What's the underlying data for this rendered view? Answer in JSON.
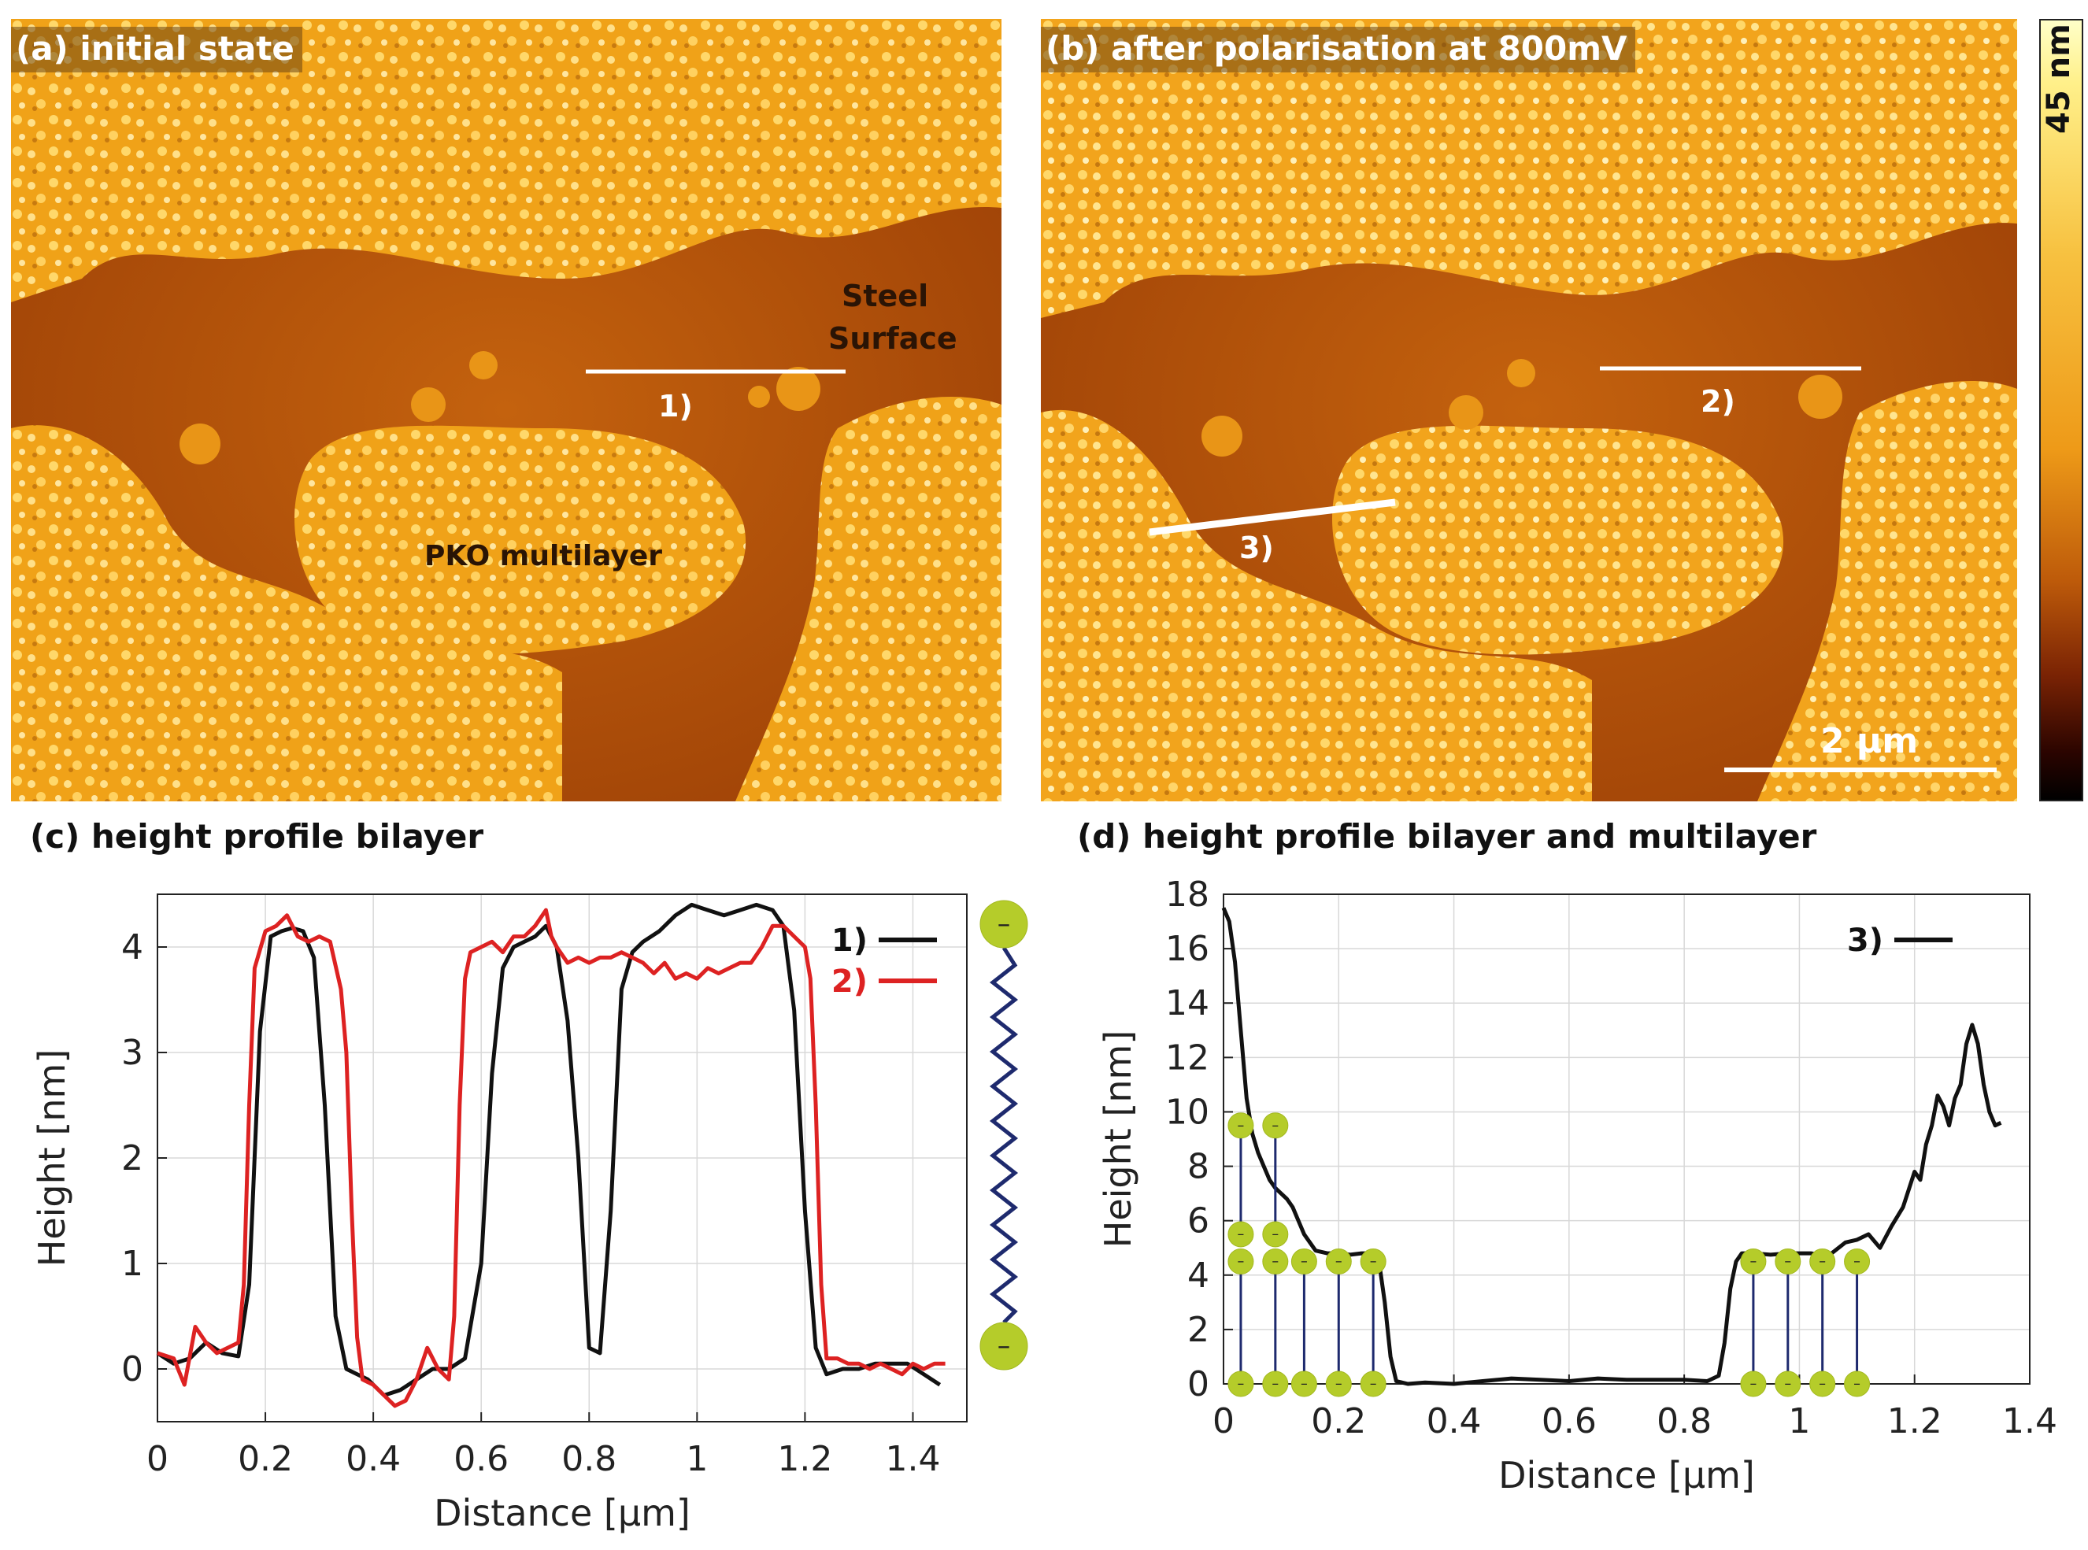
{
  "panels": {
    "a": {
      "label": "(a) initial state",
      "annotations": {
        "steel_1": "Steel",
        "steel_2": "Surface",
        "pko": "PKO multilayer",
        "line1": "1)"
      }
    },
    "b": {
      "label": "(b) after polarisation at 800mV",
      "annotations": {
        "line2": "2)",
        "line3": "3)",
        "scalebar": "2 µm"
      }
    },
    "colorbar": {
      "label": "45 nm"
    },
    "c": {
      "title": "(c) height profile bilayer"
    },
    "d": {
      "title": "(d) height profile bilayer and multilayer"
    }
  },
  "colors": {
    "series_1": "#111111",
    "series_2": "#dd2222",
    "head_group": "#b5cc2a",
    "chain": "#1e2a6e"
  },
  "chart_data": [
    {
      "type": "line",
      "title": "(c) height profile bilayer",
      "xlabel": "Distance [µm]",
      "ylabel": "Height [nm]",
      "xlim": [
        0,
        1.5
      ],
      "ylim": [
        -0.5,
        4.5
      ],
      "xticks": [
        0,
        0.2,
        0.4,
        0.6,
        0.8,
        1,
        1.2,
        1.4
      ],
      "yticks": [
        0,
        1,
        2,
        3,
        4
      ],
      "xtick_labels": [
        "0",
        "0.2",
        "0.4",
        "0.6",
        "0.8",
        "1",
        "1.2",
        "1.4"
      ],
      "ytick_labels": [
        "0",
        "1",
        "2",
        "3",
        "4"
      ],
      "legend": "top-right",
      "series": [
        {
          "name": "1)",
          "color": "#111111",
          "x": [
            0,
            0.03,
            0.06,
            0.09,
            0.12,
            0.15,
            0.17,
            0.19,
            0.21,
            0.23,
            0.25,
            0.27,
            0.29,
            0.31,
            0.33,
            0.35,
            0.37,
            0.39,
            0.42,
            0.45,
            0.48,
            0.51,
            0.54,
            0.57,
            0.6,
            0.62,
            0.64,
            0.66,
            0.68,
            0.7,
            0.72,
            0.74,
            0.76,
            0.78,
            0.8,
            0.82,
            0.84,
            0.86,
            0.88,
            0.9,
            0.93,
            0.96,
            0.99,
            1.02,
            1.05,
            1.08,
            1.11,
            1.14,
            1.16,
            1.18,
            1.2,
            1.22,
            1.24,
            1.27,
            1.3,
            1.33,
            1.36,
            1.39,
            1.42,
            1.45
          ],
          "y": [
            0.15,
            0.05,
            0.1,
            0.25,
            0.15,
            0.12,
            0.8,
            3.2,
            4.1,
            4.15,
            4.18,
            4.15,
            3.9,
            2.5,
            0.5,
            0.0,
            -0.05,
            -0.1,
            -0.25,
            -0.2,
            -0.1,
            0.0,
            0.0,
            0.1,
            1.0,
            2.8,
            3.8,
            4.0,
            4.05,
            4.1,
            4.2,
            4.0,
            3.3,
            2.0,
            0.2,
            0.15,
            1.5,
            3.6,
            3.95,
            4.05,
            4.15,
            4.3,
            4.4,
            4.35,
            4.3,
            4.35,
            4.4,
            4.35,
            4.2,
            3.4,
            1.5,
            0.2,
            -0.05,
            0.0,
            0.0,
            0.05,
            0.05,
            0.05,
            -0.05,
            -0.15
          ]
        },
        {
          "name": "2)",
          "color": "#dd2222",
          "x": [
            0,
            0.03,
            0.05,
            0.07,
            0.09,
            0.11,
            0.13,
            0.15,
            0.16,
            0.17,
            0.18,
            0.2,
            0.22,
            0.24,
            0.26,
            0.28,
            0.3,
            0.32,
            0.34,
            0.35,
            0.36,
            0.37,
            0.38,
            0.4,
            0.42,
            0.44,
            0.46,
            0.48,
            0.5,
            0.52,
            0.54,
            0.55,
            0.56,
            0.57,
            0.58,
            0.6,
            0.62,
            0.64,
            0.66,
            0.68,
            0.7,
            0.72,
            0.73,
            0.74,
            0.76,
            0.78,
            0.8,
            0.82,
            0.84,
            0.86,
            0.88,
            0.9,
            0.92,
            0.94,
            0.96,
            0.98,
            1.0,
            1.02,
            1.04,
            1.06,
            1.08,
            1.1,
            1.12,
            1.14,
            1.16,
            1.18,
            1.2,
            1.21,
            1.22,
            1.23,
            1.24,
            1.26,
            1.28,
            1.3,
            1.32,
            1.34,
            1.36,
            1.38,
            1.4,
            1.42,
            1.44,
            1.46
          ],
          "y": [
            0.15,
            0.1,
            -0.15,
            0.4,
            0.25,
            0.15,
            0.2,
            0.25,
            0.8,
            2.5,
            3.8,
            4.15,
            4.2,
            4.3,
            4.1,
            4.05,
            4.1,
            4.05,
            3.6,
            3.0,
            1.5,
            0.3,
            -0.1,
            -0.15,
            -0.25,
            -0.35,
            -0.3,
            -0.1,
            0.2,
            0.0,
            -0.1,
            0.5,
            2.5,
            3.7,
            3.95,
            4.0,
            4.05,
            3.95,
            4.1,
            4.1,
            4.2,
            4.35,
            4.1,
            4.0,
            3.85,
            3.9,
            3.85,
            3.9,
            3.9,
            3.95,
            3.9,
            3.85,
            3.75,
            3.85,
            3.7,
            3.75,
            3.7,
            3.8,
            3.75,
            3.8,
            3.85,
            3.85,
            4.0,
            4.2,
            4.2,
            4.1,
            4.0,
            3.7,
            2.5,
            0.8,
            0.1,
            0.1,
            0.05,
            0.05,
            0.0,
            0.05,
            0.0,
            -0.05,
            0.05,
            0.0,
            0.05,
            0.05
          ]
        }
      ],
      "illustration": {
        "type": "single-chain",
        "head_symbol": "–"
      }
    },
    {
      "type": "line",
      "title": "(d) height profile bilayer and multilayer",
      "xlabel": "Distance [µm]",
      "ylabel": "Height [nm]",
      "xlim": [
        0,
        1.4
      ],
      "ylim": [
        0,
        18
      ],
      "xticks": [
        0,
        0.2,
        0.4,
        0.6,
        0.8,
        1,
        1.2,
        1.4
      ],
      "yticks": [
        0,
        2,
        4,
        6,
        8,
        10,
        12,
        14,
        16,
        18
      ],
      "xtick_labels": [
        "0",
        "0.2",
        "0.4",
        "0.6",
        "0.8",
        "1",
        "1.2",
        "1.4"
      ],
      "ytick_labels": [
        "0",
        "2",
        "4",
        "6",
        "8",
        "10",
        "12",
        "14",
        "16",
        "18"
      ],
      "legend": "top-right",
      "series": [
        {
          "name": "3)",
          "color": "#111111",
          "x": [
            0,
            0.01,
            0.02,
            0.03,
            0.04,
            0.05,
            0.06,
            0.07,
            0.08,
            0.09,
            0.1,
            0.11,
            0.12,
            0.13,
            0.14,
            0.15,
            0.16,
            0.18,
            0.2,
            0.22,
            0.24,
            0.26,
            0.27,
            0.28,
            0.29,
            0.3,
            0.32,
            0.35,
            0.4,
            0.45,
            0.5,
            0.55,
            0.6,
            0.65,
            0.7,
            0.75,
            0.8,
            0.84,
            0.86,
            0.87,
            0.88,
            0.89,
            0.9,
            0.92,
            0.95,
            0.98,
            1.0,
            1.02,
            1.05,
            1.08,
            1.1,
            1.12,
            1.14,
            1.16,
            1.18,
            1.2,
            1.21,
            1.22,
            1.23,
            1.24,
            1.25,
            1.26,
            1.27,
            1.28,
            1.29,
            1.3,
            1.31,
            1.32,
            1.33,
            1.34,
            1.35
          ],
          "y": [
            17.5,
            17.0,
            15.5,
            13.0,
            10.5,
            9.2,
            8.5,
            8.0,
            7.5,
            7.2,
            7.0,
            6.8,
            6.5,
            6.0,
            5.5,
            5.2,
            4.9,
            4.8,
            4.8,
            4.75,
            4.8,
            4.8,
            4.5,
            3.0,
            1.0,
            0.1,
            0.0,
            0.05,
            0.0,
            0.1,
            0.2,
            0.15,
            0.1,
            0.2,
            0.15,
            0.15,
            0.15,
            0.1,
            0.3,
            1.5,
            3.5,
            4.5,
            4.8,
            4.8,
            4.75,
            4.8,
            4.8,
            4.8,
            4.7,
            5.2,
            5.3,
            5.5,
            5.0,
            5.8,
            6.5,
            7.8,
            7.5,
            8.8,
            9.5,
            10.6,
            10.2,
            9.5,
            10.5,
            11.0,
            12.5,
            13.2,
            12.5,
            11.0,
            10.0,
            9.5,
            9.6
          ]
        }
      ],
      "illustration": {
        "type": "bilayer-and-multilayer",
        "head_symbol": "–"
      }
    }
  ]
}
